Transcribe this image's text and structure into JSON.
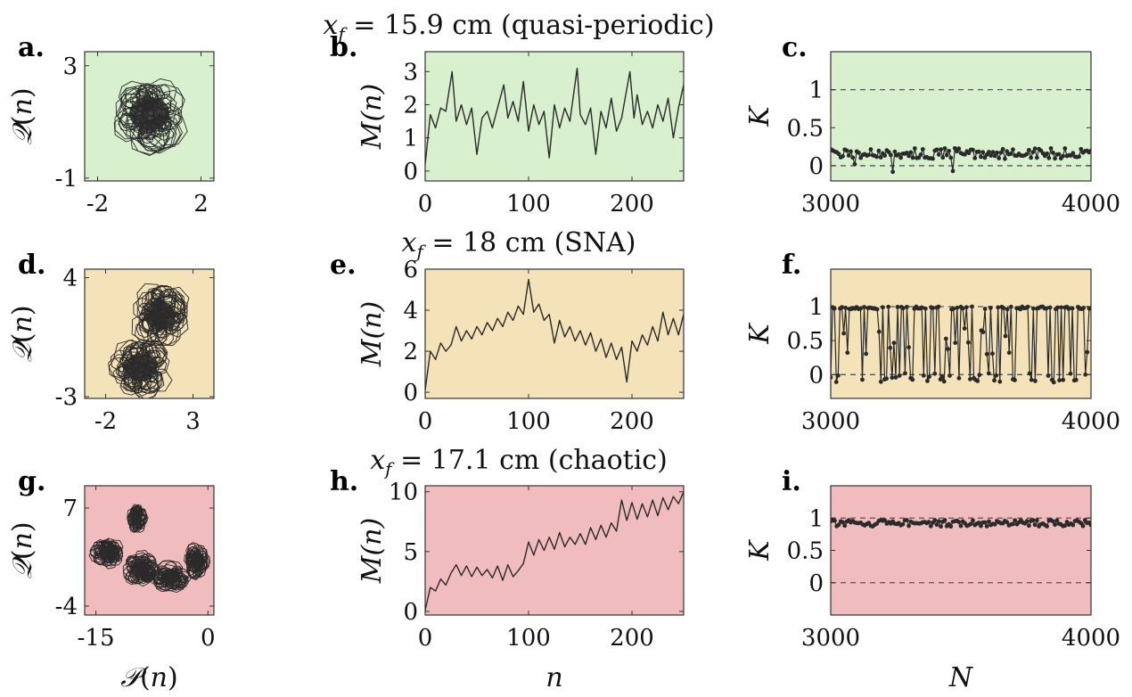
{
  "colors": {
    "green": "#d9f0cf",
    "yellow": "#f4e2b8",
    "red": "#f0bcbe",
    "line": "#2a2a2a",
    "dash": "#555555"
  },
  "chart_data": [
    {
      "id": "a",
      "panel_label": "a.",
      "type": "scatter",
      "kind": "phase",
      "bg": "green",
      "xlabel": "",
      "ylabel": "𝒬(n)",
      "title": "",
      "xlim": [
        -2.5,
        2.5
      ],
      "ylim": [
        -1.1,
        3.5
      ],
      "xticks": [
        "-2",
        "2"
      ],
      "xtick_values": [
        -2,
        2
      ],
      "yticks": [
        "-1",
        "3"
      ],
      "ytick_values": [
        -1,
        3
      ],
      "blobs": [
        {
          "cx": 0.0,
          "cy": 1.3,
          "rx": 1.4,
          "ry": 1.2
        }
      ]
    },
    {
      "id": "b",
      "panel_label": "b.",
      "type": "line",
      "kind": "series",
      "bg": "green",
      "title": "x_f = 15.9 cm (quasi-periodic)",
      "xlabel": "",
      "ylabel": "M(n)",
      "xlim": [
        0,
        250
      ],
      "ylim": [
        -0.3,
        3.6
      ],
      "xticks": [
        "0",
        "100",
        "200"
      ],
      "xtick_values": [
        0,
        100,
        200
      ],
      "yticks": [
        "0",
        "1",
        "2",
        "3"
      ],
      "ytick_values": [
        0,
        1,
        2,
        3
      ],
      "x": [
        0,
        5,
        10,
        15,
        20,
        26,
        30,
        35,
        40,
        45,
        50,
        55,
        60,
        65,
        70,
        76,
        80,
        85,
        90,
        95,
        100,
        105,
        110,
        115,
        120,
        125,
        130,
        135,
        140,
        147,
        150,
        155,
        160,
        165,
        170,
        175,
        180,
        185,
        190,
        198,
        202,
        205,
        210,
        215,
        220,
        225,
        230,
        235,
        240,
        245,
        250
      ],
      "y": [
        0.2,
        1.7,
        1.3,
        1.9,
        1.8,
        3.0,
        1.5,
        2.0,
        1.4,
        1.9,
        0.5,
        1.6,
        1.8,
        1.3,
        1.9,
        2.6,
        1.6,
        2.1,
        1.5,
        2.7,
        1.2,
        2.0,
        1.4,
        1.8,
        0.4,
        2.0,
        1.3,
        1.9,
        1.5,
        3.1,
        1.7,
        1.4,
        1.9,
        0.5,
        1.8,
        1.3,
        2.2,
        1.2,
        1.6,
        3.0,
        1.6,
        2.3,
        1.4,
        1.8,
        1.3,
        2.0,
        1.5,
        2.2,
        1.0,
        1.9,
        2.6
      ]
    },
    {
      "id": "c",
      "panel_label": "c.",
      "type": "line",
      "kind": "k",
      "bg": "green",
      "title": "",
      "xlabel": "",
      "ylabel": "K",
      "xlim": [
        3000,
        4000
      ],
      "ylim": [
        -0.2,
        1.5
      ],
      "xticks": [
        "3000",
        "4000"
      ],
      "xtick_values": [
        3000,
        4000
      ],
      "yticks": [
        "0",
        "0.5",
        "1"
      ],
      "ytick_values": [
        0,
        0.5,
        1
      ],
      "ref_lines": [
        0,
        1
      ],
      "k_mean": 0.16,
      "k_spread": 0.07,
      "k_dips": [
        {
          "x": 3240,
          "y": -0.08
        },
        {
          "x": 3470,
          "y": -0.07
        },
        {
          "x": 3090,
          "y": 0.02
        }
      ]
    },
    {
      "id": "d",
      "panel_label": "d.",
      "type": "scatter",
      "kind": "phase",
      "bg": "yellow",
      "xlabel": "",
      "ylabel": "𝒬(n)",
      "title": "",
      "xlim": [
        -3.2,
        4.2
      ],
      "ylim": [
        -3.1,
        4.5
      ],
      "xticks": [
        "-2",
        "3"
      ],
      "xtick_values": [
        -2,
        3
      ],
      "yticks": [
        "-3",
        "4"
      ],
      "ytick_values": [
        -3,
        4
      ],
      "blobs": [
        {
          "cx": 1.1,
          "cy": 1.8,
          "rx": 1.6,
          "ry": 1.7
        },
        {
          "cx": 0.0,
          "cy": -1.3,
          "rx": 1.7,
          "ry": 1.6
        }
      ]
    },
    {
      "id": "e",
      "panel_label": "e.",
      "type": "line",
      "kind": "series",
      "bg": "yellow",
      "title": "x_f = 18 cm (SNA)",
      "xlabel": "",
      "ylabel": "M(n)",
      "xlim": [
        0,
        250
      ],
      "ylim": [
        -0.3,
        6
      ],
      "xticks": [
        "0",
        "100",
        "200"
      ],
      "xtick_values": [
        0,
        100,
        200
      ],
      "yticks": [
        "0",
        "2",
        "4",
        "6"
      ],
      "ytick_values": [
        0,
        2,
        4,
        6
      ],
      "x": [
        0,
        5,
        10,
        15,
        20,
        25,
        30,
        35,
        40,
        45,
        50,
        55,
        60,
        65,
        70,
        75,
        80,
        85,
        90,
        95,
        100,
        105,
        110,
        115,
        120,
        125,
        130,
        135,
        140,
        145,
        150,
        155,
        160,
        165,
        170,
        175,
        180,
        185,
        190,
        195,
        200,
        205,
        210,
        215,
        220,
        225,
        230,
        235,
        240,
        245,
        250
      ],
      "y": [
        0.1,
        2.0,
        1.6,
        2.4,
        2.0,
        2.3,
        3.2,
        2.5,
        3.0,
        2.6,
        3.2,
        2.8,
        3.4,
        3.0,
        3.6,
        3.2,
        3.9,
        3.5,
        4.2,
        3.8,
        5.5,
        3.9,
        4.3,
        3.5,
        3.8,
        2.4,
        3.5,
        2.7,
        3.2,
        2.5,
        3.0,
        2.3,
        2.9,
        2.0,
        2.6,
        1.7,
        2.4,
        1.6,
        2.2,
        0.5,
        2.5,
        2.0,
        2.8,
        2.3,
        3.2,
        2.5,
        3.9,
        2.8,
        3.6,
        2.8,
        3.8
      ]
    },
    {
      "id": "f",
      "panel_label": "f.",
      "type": "line",
      "kind": "k",
      "bg": "yellow",
      "title": "",
      "xlabel": "",
      "ylabel": "K",
      "xlim": [
        3000,
        4000
      ],
      "ylim": [
        -0.35,
        1.55
      ],
      "xticks": [
        "3000",
        "4000"
      ],
      "xtick_values": [
        3000,
        4000
      ],
      "yticks": [
        "0",
        "0.5",
        "1"
      ],
      "ytick_values": [
        0,
        0.5,
        1
      ],
      "ref_lines": [
        0,
        1
      ],
      "k_mode": "intermittent"
    },
    {
      "id": "g",
      "panel_label": "g.",
      "type": "scatter",
      "kind": "phase",
      "bg": "red",
      "xlabel": "𝒫(n)",
      "ylabel": "𝒬(n)",
      "title": "",
      "xlim": [
        -16.5,
        0.8
      ],
      "ylim": [
        -5,
        9.5
      ],
      "xticks": [
        "-15",
        "0"
      ],
      "xtick_values": [
        -15,
        0
      ],
      "yticks": [
        "-4",
        "7"
      ],
      "ytick_values": [
        -4,
        7
      ],
      "blobs": [
        {
          "cx": -13.5,
          "cy": 2.0,
          "rx": 2.0,
          "ry": 1.6
        },
        {
          "cx": -9.5,
          "cy": 5.8,
          "rx": 1.2,
          "ry": 1.4
        },
        {
          "cx": -9.0,
          "cy": 0.2,
          "rx": 2.3,
          "ry": 1.8
        },
        {
          "cx": -5.0,
          "cy": -0.8,
          "rx": 2.5,
          "ry": 1.6
        },
        {
          "cx": -1.5,
          "cy": 1.0,
          "rx": 1.6,
          "ry": 1.8
        }
      ]
    },
    {
      "id": "h",
      "panel_label": "h.",
      "type": "line",
      "kind": "series",
      "bg": "red",
      "title": "x_f = 17.1 cm (chaotic)",
      "xlabel": "n",
      "ylabel": "M(n)",
      "xlim": [
        0,
        250
      ],
      "ylim": [
        -0.3,
        10.5
      ],
      "xticks": [
        "0",
        "100",
        "200"
      ],
      "xtick_values": [
        0,
        100,
        200
      ],
      "yticks": [
        "0",
        "5",
        "10"
      ],
      "ytick_values": [
        0,
        5,
        10
      ],
      "x": [
        0,
        5,
        10,
        15,
        20,
        25,
        30,
        35,
        40,
        45,
        50,
        55,
        60,
        65,
        70,
        75,
        80,
        85,
        90,
        95,
        100,
        105,
        110,
        115,
        120,
        125,
        130,
        135,
        140,
        145,
        150,
        155,
        160,
        165,
        170,
        175,
        180,
        185,
        190,
        195,
        200,
        205,
        210,
        215,
        220,
        225,
        230,
        235,
        240,
        245,
        250
      ],
      "y": [
        0.1,
        2.0,
        1.7,
        2.7,
        2.2,
        3.2,
        3.9,
        3.0,
        3.8,
        2.9,
        3.7,
        3.0,
        3.5,
        2.8,
        3.8,
        2.6,
        3.9,
        2.9,
        3.4,
        4.0,
        5.8,
        4.7,
        6.0,
        5.1,
        6.2,
        5.2,
        6.6,
        5.4,
        6.2,
        5.6,
        6.5,
        5.6,
        7.0,
        6.0,
        7.2,
        6.2,
        7.4,
        6.7,
        9.3,
        7.6,
        9.1,
        7.7,
        9.0,
        7.9,
        9.3,
        8.0,
        9.5,
        8.5,
        9.6,
        9.0,
        10.0
      ]
    },
    {
      "id": "i",
      "panel_label": "i.",
      "type": "line",
      "kind": "k",
      "bg": "red",
      "title": "",
      "xlabel": "N",
      "ylabel": "K",
      "xlim": [
        3000,
        4000
      ],
      "ylim": [
        -0.5,
        1.5
      ],
      "xticks": [
        "3000",
        "4000"
      ],
      "xtick_values": [
        3000,
        4000
      ],
      "yticks": [
        "0",
        "0.5",
        "1"
      ],
      "ytick_values": [
        0,
        0.5,
        1
      ],
      "ref_lines": [
        0,
        1
      ],
      "k_mean": 0.92,
      "k_spread": 0.05
    }
  ]
}
